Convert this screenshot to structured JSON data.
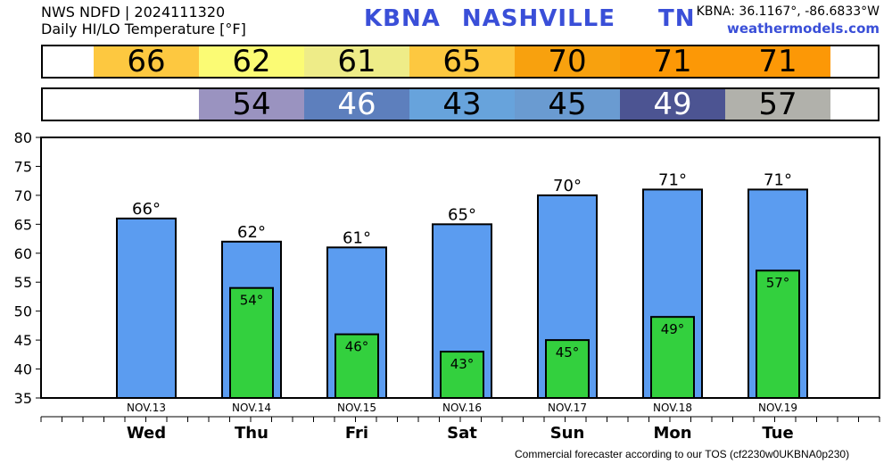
{
  "header": {
    "line1": "NWS NDFD | 2024111320",
    "line2": "Daily HI/LO Temperature [°F]",
    "station_code": "KBNA",
    "station_name": "NASHVILLE",
    "state": "TN",
    "coords": "KBNA: 36.1167°, -86.6833°W",
    "site": "weathermodels.com"
  },
  "hi_strip": [
    {
      "value": "66",
      "color": "#fdc840"
    },
    {
      "value": "62",
      "color": "#fbfb74"
    },
    {
      "value": "61",
      "color": "#eeec88"
    },
    {
      "value": "65",
      "color": "#fdc840"
    },
    {
      "value": "70",
      "color": "#f8a10e"
    },
    {
      "value": "71",
      "color": "#fc9806"
    },
    {
      "value": "71",
      "color": "#fc9806"
    }
  ],
  "lo_strip": [
    {
      "value": "",
      "color": "#ffffff",
      "text_color": "#000000"
    },
    {
      "value": "54",
      "color": "#9a93c0",
      "text_color": "#000000"
    },
    {
      "value": "46",
      "color": "#5d7fbd",
      "text_color": "#ffffff"
    },
    {
      "value": "43",
      "color": "#67a3dc",
      "text_color": "#000000"
    },
    {
      "value": "45",
      "color": "#6a9bd1",
      "text_color": "#000000"
    },
    {
      "value": "49",
      "color": "#4c5492",
      "text_color": "#ffffff"
    },
    {
      "value": "57",
      "color": "#b1b1ab",
      "text_color": "#000000"
    }
  ],
  "chart_data": {
    "type": "bar",
    "categories": [
      "NOV.13",
      "NOV.14",
      "NOV.15",
      "NOV.16",
      "NOV.17",
      "NOV.18",
      "NOV.19"
    ],
    "days": [
      "Wed",
      "Thu",
      "Fri",
      "Sat",
      "Sun",
      "Mon",
      "Tue"
    ],
    "series": [
      {
        "values": [
          66,
          62,
          61,
          65,
          70,
          71,
          71
        ],
        "labels": [
          "66°",
          "62°",
          "61°",
          "65°",
          "70°",
          "71°",
          "71°"
        ],
        "color": "#5b9cf0"
      },
      {
        "values": [
          null,
          54,
          46,
          43,
          45,
          49,
          57
        ],
        "labels": [
          "",
          "54°",
          "46°",
          "43°",
          "45°",
          "49°",
          "57°"
        ],
        "color": "#33d03e"
      }
    ],
    "ylim": [
      35,
      80
    ],
    "yticks": [
      35,
      40,
      45,
      50,
      55,
      60,
      65,
      70,
      75,
      80
    ],
    "grid": false
  },
  "footer": "Commercial forecaster according to our TOS (cf2230w0UKBNA0p230)"
}
